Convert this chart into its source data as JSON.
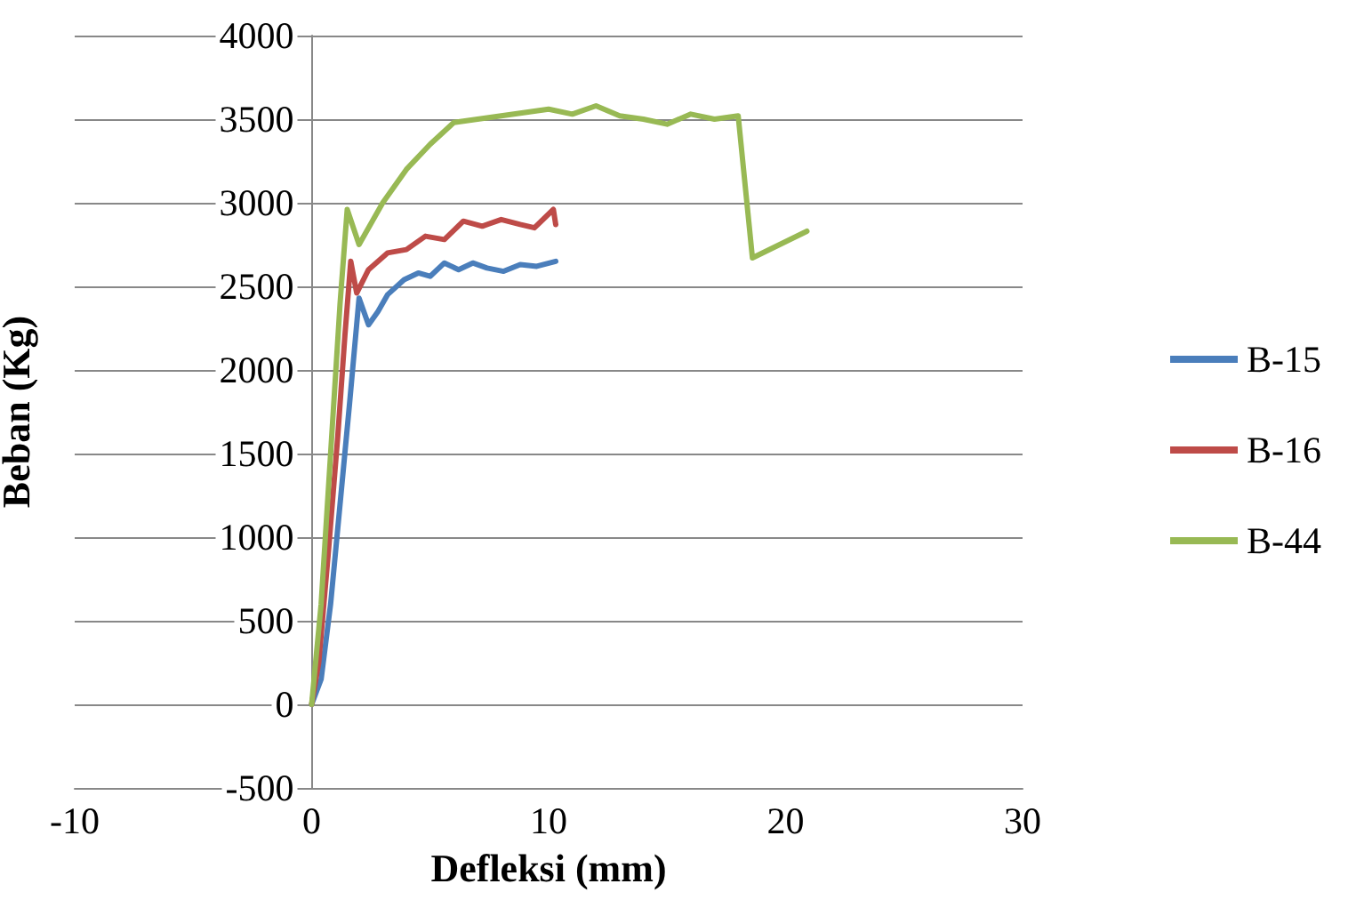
{
  "chart_data": {
    "type": "line",
    "xlabel": "Defleksi (mm)",
    "ylabel": "Beban (Kg)",
    "xlim": [
      -10,
      30
    ],
    "xticks": [
      -10,
      0,
      10,
      20,
      30
    ],
    "ylim": [
      -500,
      4000
    ],
    "yticks": [
      -500,
      0,
      500,
      1000,
      1500,
      2000,
      2500,
      3000,
      3500,
      4000
    ],
    "grid": "y",
    "legend": "right",
    "marker": "none",
    "line_style": "solid",
    "series": [
      {
        "name": "B-15",
        "color": "#4a7ebb",
        "x": [
          0,
          0.4,
          0.8,
          1.2,
          1.6,
          2.0,
          2.4,
          2.8,
          3.2,
          3.9,
          4.5,
          5.0,
          5.6,
          6.2,
          6.8,
          7.4,
          8.1,
          8.8,
          9.5,
          10.3
        ],
        "values": [
          0,
          150,
          600,
          1200,
          1800,
          2430,
          2270,
          2350,
          2450,
          2540,
          2580,
          2560,
          2640,
          2600,
          2640,
          2610,
          2590,
          2630,
          2620,
          2650
        ]
      },
      {
        "name": "B-16",
        "color": "#be4b48",
        "x": [
          0,
          0.3,
          0.7,
          1.1,
          1.4,
          1.65,
          1.9,
          2.4,
          3.2,
          4.0,
          4.8,
          5.6,
          6.4,
          7.2,
          8.0,
          8.8,
          9.4,
          10.2,
          10.3
        ],
        "values": [
          0,
          250,
          900,
          1600,
          2200,
          2650,
          2460,
          2600,
          2700,
          2720,
          2800,
          2780,
          2890,
          2860,
          2900,
          2870,
          2850,
          2960,
          2870
        ]
      },
      {
        "name": "B-44",
        "color": "#98b954",
        "x": [
          0,
          0.4,
          0.8,
          1.2,
          1.5,
          2.0,
          3.0,
          4.0,
          5.0,
          6.0,
          7.0,
          8.0,
          9.0,
          10.0,
          11.0,
          12.0,
          13.0,
          14.0,
          15.0,
          16.0,
          17.0,
          18.0,
          18.6,
          20.9
        ],
        "values": [
          0,
          600,
          1500,
          2400,
          2960,
          2750,
          3000,
          3200,
          3350,
          3480,
          3500,
          3520,
          3540,
          3560,
          3530,
          3580,
          3520,
          3500,
          3470,
          3530,
          3500,
          3520,
          2670,
          2830
        ]
      }
    ]
  }
}
